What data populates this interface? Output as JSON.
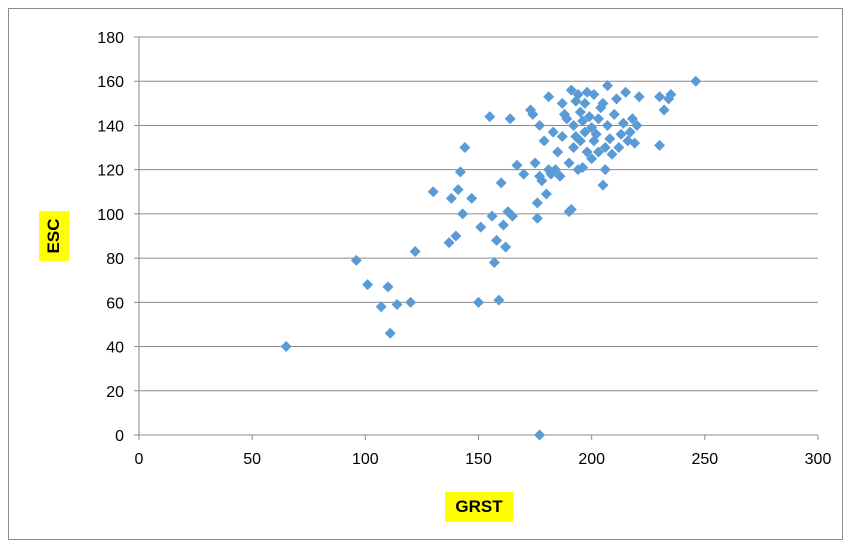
{
  "chart_data": {
    "type": "scatter",
    "xlabel": "GRST",
    "ylabel": "ESC",
    "xlim": [
      0,
      300
    ],
    "ylim": [
      0,
      180
    ],
    "xticks": [
      0,
      50,
      100,
      150,
      200,
      250,
      300
    ],
    "yticks": [
      0,
      20,
      40,
      60,
      80,
      100,
      120,
      140,
      160,
      180
    ],
    "grid": "horizontal",
    "label_highlight_color": "#ffff00",
    "marker": "diamond",
    "marker_color": "#5b9bd5",
    "points": [
      [
        65,
        40
      ],
      [
        96,
        79
      ],
      [
        101,
        68
      ],
      [
        107,
        58
      ],
      [
        110,
        67
      ],
      [
        111,
        46
      ],
      [
        114,
        59
      ],
      [
        120,
        60
      ],
      [
        122,
        83
      ],
      [
        130,
        110
      ],
      [
        137,
        87
      ],
      [
        138,
        107
      ],
      [
        140,
        90
      ],
      [
        141,
        111
      ],
      [
        142,
        119
      ],
      [
        143,
        100
      ],
      [
        144,
        130
      ],
      [
        147,
        107
      ],
      [
        150,
        60
      ],
      [
        151,
        94
      ],
      [
        155,
        144
      ],
      [
        156,
        99
      ],
      [
        157,
        78
      ],
      [
        158,
        88
      ],
      [
        159,
        61
      ],
      [
        160,
        114
      ],
      [
        161,
        95
      ],
      [
        162,
        85
      ],
      [
        163,
        101
      ],
      [
        164,
        143
      ],
      [
        165,
        99
      ],
      [
        167,
        122
      ],
      [
        170,
        118
      ],
      [
        173,
        147
      ],
      [
        174,
        145
      ],
      [
        175,
        123
      ],
      [
        176,
        98
      ],
      [
        176,
        105
      ],
      [
        177,
        117
      ],
      [
        177,
        140
      ],
      [
        177,
        0
      ],
      [
        178,
        115
      ],
      [
        179,
        133
      ],
      [
        180,
        109
      ],
      [
        181,
        120
      ],
      [
        181,
        153
      ],
      [
        182,
        118
      ],
      [
        183,
        137
      ],
      [
        184,
        120
      ],
      [
        185,
        128
      ],
      [
        186,
        117
      ],
      [
        187,
        135
      ],
      [
        187,
        150
      ],
      [
        188,
        145
      ],
      [
        189,
        143
      ],
      [
        190,
        123
      ],
      [
        190,
        101
      ],
      [
        191,
        156
      ],
      [
        191,
        102
      ],
      [
        192,
        140
      ],
      [
        192,
        130
      ],
      [
        193,
        151
      ],
      [
        193,
        135
      ],
      [
        194,
        154
      ],
      [
        194,
        120
      ],
      [
        195,
        146
      ],
      [
        195,
        133
      ],
      [
        196,
        142
      ],
      [
        196,
        121
      ],
      [
        197,
        137
      ],
      [
        197,
        150
      ],
      [
        198,
        155
      ],
      [
        198,
        128
      ],
      [
        199,
        144
      ],
      [
        200,
        125
      ],
      [
        200,
        139
      ],
      [
        201,
        133
      ],
      [
        201,
        154
      ],
      [
        202,
        136
      ],
      [
        203,
        143
      ],
      [
        203,
        128
      ],
      [
        204,
        148
      ],
      [
        205,
        113
      ],
      [
        205,
        150
      ],
      [
        206,
        130
      ],
      [
        206,
        120
      ],
      [
        207,
        158
      ],
      [
        207,
        140
      ],
      [
        208,
        134
      ],
      [
        209,
        127
      ],
      [
        210,
        145
      ],
      [
        211,
        152
      ],
      [
        212,
        130
      ],
      [
        213,
        136
      ],
      [
        214,
        141
      ],
      [
        215,
        155
      ],
      [
        216,
        133
      ],
      [
        217,
        137
      ],
      [
        218,
        143
      ],
      [
        219,
        132
      ],
      [
        220,
        140
      ],
      [
        221,
        153
      ],
      [
        230,
        153
      ],
      [
        230,
        131
      ],
      [
        232,
        147
      ],
      [
        234,
        152
      ],
      [
        235,
        154
      ],
      [
        246,
        160
      ]
    ]
  }
}
